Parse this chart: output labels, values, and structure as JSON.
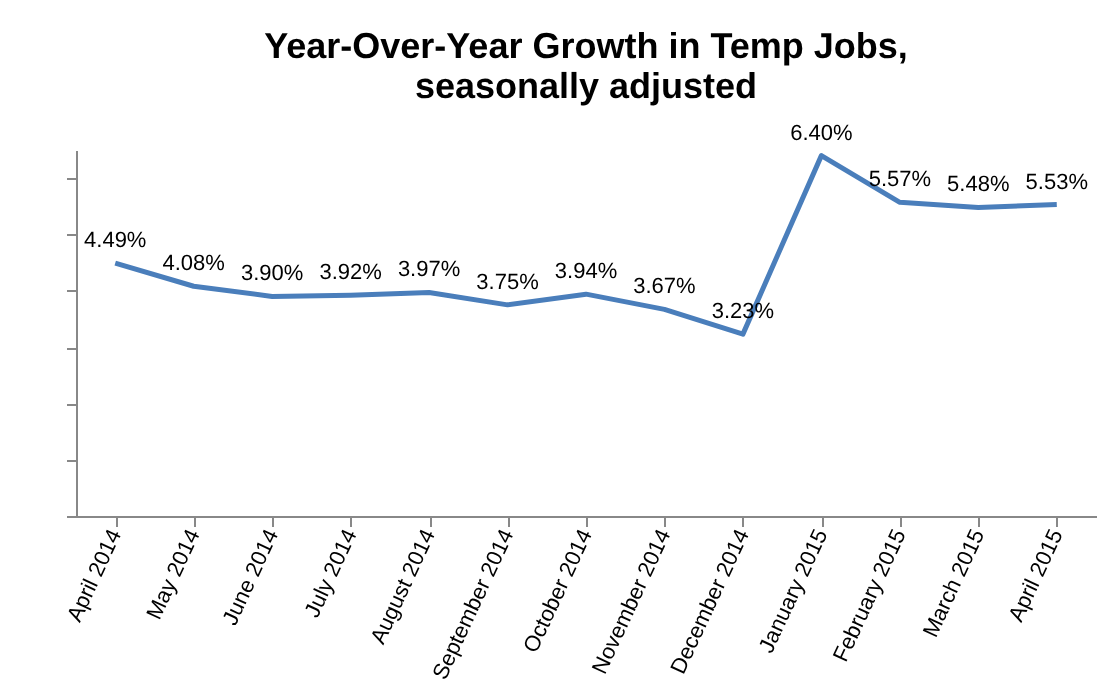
{
  "chart_data": {
    "type": "line",
    "title": "Year-Over-Year Growth in Temp Jobs, seasonally adjusted",
    "categories": [
      "April 2014",
      "May 2014",
      "June 2014",
      "July 2014",
      "August 2014",
      "September 2014",
      "October 2014",
      "November 2014",
      "December 2014",
      "January 2015",
      "February 2015",
      "March 2015",
      "April 2015"
    ],
    "series": [
      {
        "color": "#4a7ebb",
        "values": [
          4.49,
          4.08,
          3.9,
          3.92,
          3.97,
          3.75,
          3.94,
          3.67,
          3.23,
          6.4,
          5.57,
          5.48,
          5.53
        ],
        "value_labels": [
          "4.49%",
          "4.08%",
          "3.90%",
          "3.92%",
          "3.97%",
          "3.75%",
          "3.94%",
          "3.67%",
          "3.23%",
          "6.40%",
          "5.57%",
          "5.48%",
          "5.53%"
        ]
      }
    ],
    "tick_labels": "x",
    "grid": false,
    "legend": false,
    "marker": "none",
    "line_style": "solid"
  }
}
